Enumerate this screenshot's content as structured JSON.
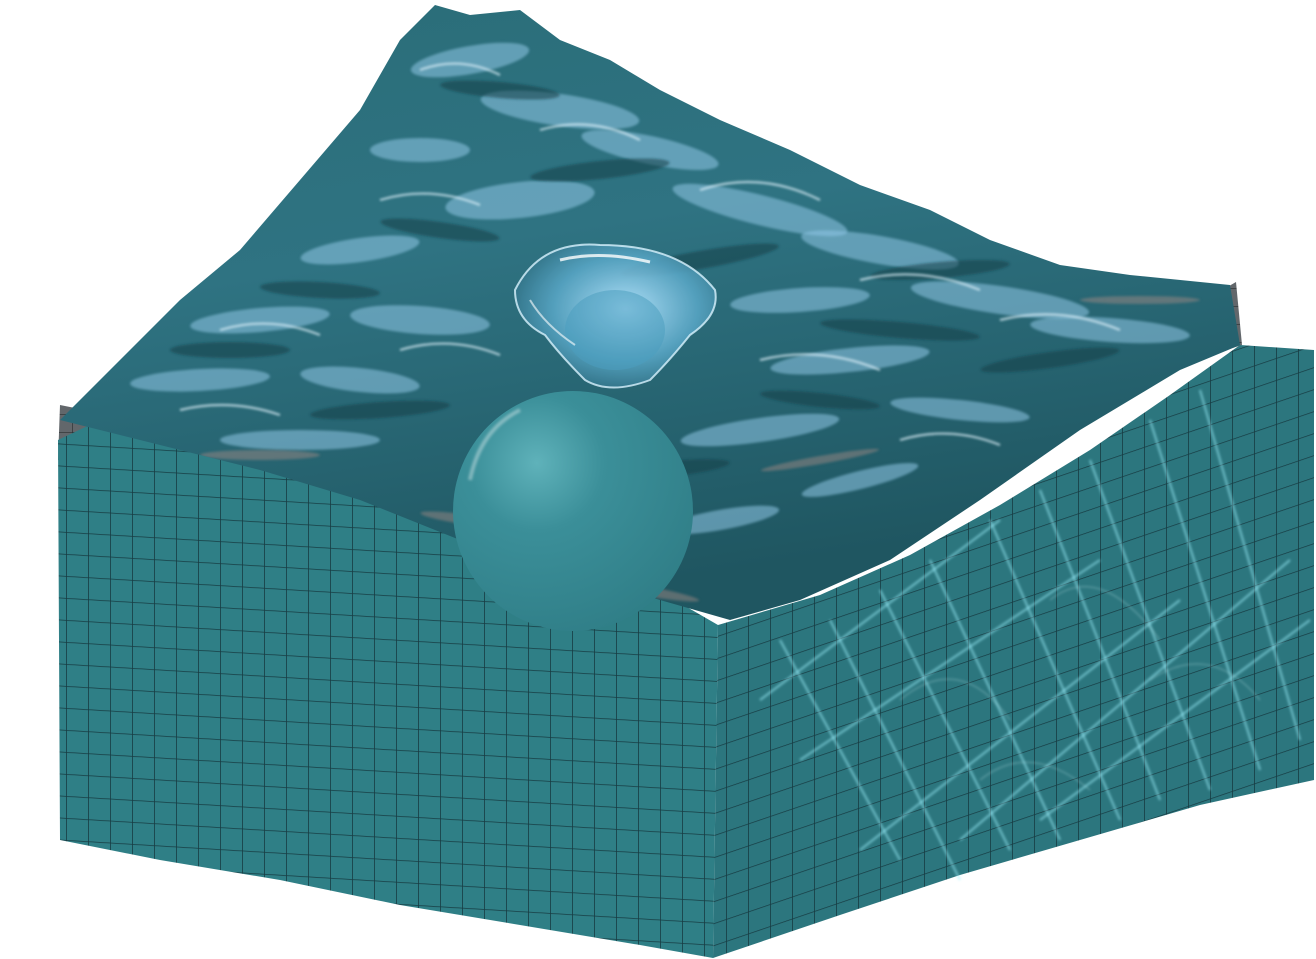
{
  "scene": {
    "subject": "water-pool-simulation",
    "colors": {
      "background": "#ffffff",
      "tile_left": "#2f7f86",
      "tile_right": "#2c767e",
      "tile_grout": "#173c43",
      "corner_grey": "#5f6468",
      "water_deep": "#1f5862",
      "water_mid": "#3a7f8f",
      "water_light": "#8fc7e6",
      "sphere": "#3a8d97",
      "caustic": "#9ff3ff"
    }
  }
}
